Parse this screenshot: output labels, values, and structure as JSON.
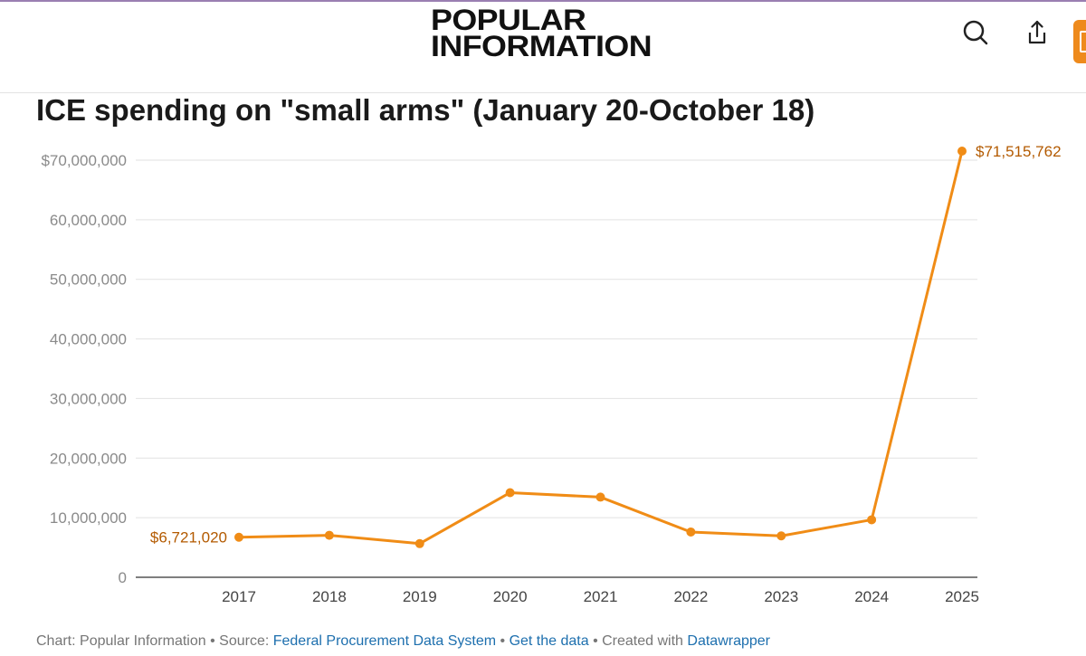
{
  "header": {
    "logo_line1": "POPULAR",
    "logo_line2": "INFORMATION",
    "accent_color": "#ee8a1c"
  },
  "icons": {
    "search": "search-icon",
    "share": "share-icon",
    "side_tab": "bookmark-tab-icon"
  },
  "chart_data": {
    "type": "line",
    "title": "ICE spending on \"small arms\" (January 20-October 18)",
    "x": [
      "2017",
      "2018",
      "2019",
      "2020",
      "2021",
      "2022",
      "2023",
      "2024",
      "2025"
    ],
    "series": [
      {
        "values": [
          6721020,
          7050000,
          5650000,
          14200000,
          13450000,
          7600000,
          6950000,
          9650000,
          71515762
        ],
        "color": "#f08c16"
      }
    ],
    "data_labels": {
      "first": "$6,721,020",
      "last": "$71,515,762"
    },
    "label_color": "#b35a00",
    "ylim": [
      0,
      70000000
    ],
    "yticks": [
      0,
      10000000,
      20000000,
      30000000,
      40000000,
      50000000,
      60000000,
      70000000
    ],
    "ytick_labels": [
      "0",
      "10,000,000",
      "20,000,000",
      "30,000,000",
      "40,000,000",
      "50,000,000",
      "60,000,000",
      "$70,000,000"
    ],
    "grid": true
  },
  "footer": {
    "prefix": "Chart: Popular Information • Source: ",
    "source_link": "Federal Procurement Data System",
    "sep1": " • ",
    "data_link": "Get the data",
    "sep2": " • Created with ",
    "tool_link": "Datawrapper",
    "link_color": "#1d6fae"
  }
}
